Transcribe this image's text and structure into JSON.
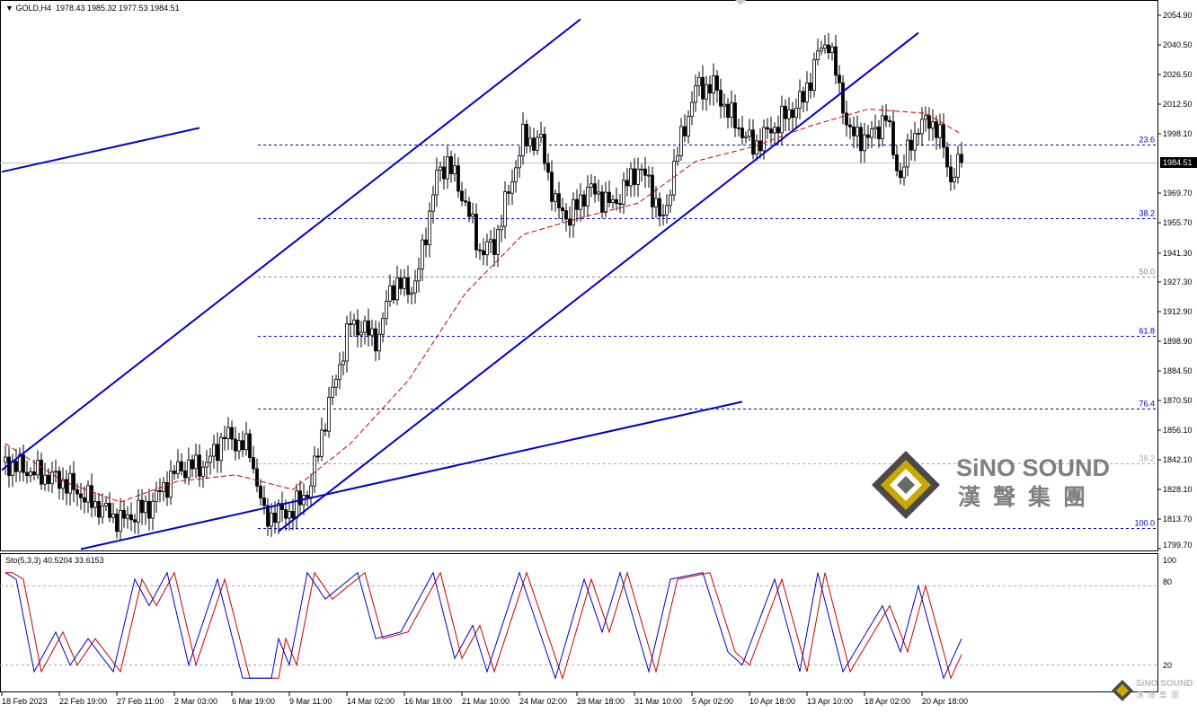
{
  "header": {
    "symbol": "GOLD,H4",
    "ohlc": "1978.43 1985.32 1977.53 1984.51"
  },
  "indicator": {
    "label": "Sto(5,3,3) 40.5204 33.6153"
  },
  "logo": {
    "name": "SiNO SOUND",
    "chinese": "漢聲集團"
  },
  "colors": {
    "trendline": "#0000cc",
    "fib": "#0000cc",
    "ma": "#cc0000",
    "stoch_main": "#0000cc",
    "stoch_signal": "#cc0000",
    "grid": "#aaaaaa"
  },
  "chart_data": [
    {
      "type": "candlestick",
      "title": "GOLD,H4",
      "ylim": [
        1799.7,
        2054.9
      ],
      "y_ticks": [
        "2054.90",
        "2040.50",
        "2026.50",
        "2012.50",
        "1998.10",
        "1969.70",
        "1955.70",
        "1941.30",
        "1927.30",
        "1912.90",
        "1898.90",
        "1884.50",
        "1870.50",
        "1856.10",
        "1842.10",
        "1828.10",
        "1813.70",
        "1799.70"
      ],
      "current_price": "1984.51",
      "x_ticks": [
        "18 Feb 2023",
        "22 Feb 19:00",
        "27 Feb 11:00",
        "2 Mar 03:00",
        "6 Mar 19:00",
        "9 Mar 11:00",
        "14 Mar 02:00",
        "16 Mar 18:00",
        "21 Mar 10:00",
        "24 Mar 02:00",
        "28 Mar 18:00",
        "31 Mar 10:00",
        "5 Apr 02:00",
        "10 Apr 18:00",
        "13 Apr 10:00",
        "18 Apr 02:00",
        "20 Apr 18:00"
      ],
      "bars_per_x_tick": 16,
      "close_path": [
        [
          1,
          1841
        ],
        [
          9,
          1836
        ],
        [
          17,
          1832
        ],
        [
          25,
          1822
        ],
        [
          33,
          1813
        ],
        [
          41,
          1820
        ],
        [
          49,
          1838
        ],
        [
          57,
          1840
        ],
        [
          62,
          1854
        ],
        [
          69,
          1847
        ],
        [
          73,
          1815
        ],
        [
          81,
          1818
        ],
        [
          86,
          1830
        ],
        [
          89,
          1855
        ],
        [
          97,
          1908
        ],
        [
          105,
          1900
        ],
        [
          108,
          1925
        ],
        [
          115,
          1925
        ],
        [
          121,
          1978
        ],
        [
          124,
          1985
        ],
        [
          129,
          1965
        ],
        [
          133,
          1942
        ],
        [
          137,
          1945
        ],
        [
          145,
          1996
        ],
        [
          150,
          1994
        ],
        [
          154,
          1964
        ],
        [
          158,
          1958
        ],
        [
          163,
          1972
        ],
        [
          170,
          1964
        ],
        [
          177,
          1982
        ],
        [
          180,
          1975
        ],
        [
          184,
          1955
        ],
        [
          187,
          1983
        ],
        [
          193,
          2020
        ],
        [
          198,
          2021
        ],
        [
          203,
          2006
        ],
        [
          209,
          1992
        ],
        [
          217,
          2005
        ],
        [
          223,
          2015
        ],
        [
          227,
          2036
        ],
        [
          230,
          2043
        ],
        [
          233,
          2019
        ],
        [
          236,
          1998
        ],
        [
          241,
          1996
        ],
        [
          246,
          2006
        ],
        [
          250,
          1976
        ],
        [
          253,
          1996
        ],
        [
          258,
          2006
        ],
        [
          262,
          1993
        ],
        [
          264,
          1976
        ],
        [
          267,
          1984.51
        ]
      ],
      "moving_average": {
        "style": "dashed",
        "path": [
          [
            1,
            1850
          ],
          [
            17,
            1832
          ],
          [
            33,
            1822
          ],
          [
            49,
            1832
          ],
          [
            65,
            1835
          ],
          [
            81,
            1828
          ],
          [
            97,
            1850
          ],
          [
            113,
            1880
          ],
          [
            129,
            1922
          ],
          [
            145,
            1950
          ],
          [
            161,
            1958
          ],
          [
            177,
            1965
          ],
          [
            193,
            1985
          ],
          [
            209,
            1992
          ],
          [
            225,
            2002
          ],
          [
            241,
            2010
          ],
          [
            257,
            2008
          ],
          [
            267,
            1998
          ]
        ]
      },
      "fibonacci_levels": [
        {
          "label": "23.6",
          "price": 1992.9,
          "color": "#0000cc"
        },
        {
          "label": "38.2",
          "price": 1958.0,
          "color": "#0000cc"
        },
        {
          "label": "50.0",
          "price": 1929.7,
          "color": "#888888"
        },
        {
          "label": "61.8",
          "price": 1901.4,
          "color": "#0000cc"
        },
        {
          "label": "76.4",
          "price": 1866.6,
          "color": "#0000cc"
        },
        {
          "label": "38.2",
          "price": 1840.5,
          "color": "#aaaaaa"
        },
        {
          "label": "100.0",
          "price": 1809.5,
          "color": "#0000cc"
        }
      ],
      "trendlines": [
        {
          "from": [
            0,
            1837.3
          ],
          "to": [
            161,
            2053.0
          ]
        },
        {
          "from": [
            0,
            1980.0
          ],
          "to": [
            55,
            2001.0
          ]
        },
        {
          "from": [
            77,
            1808.0
          ],
          "to": [
            255,
            2046.5
          ]
        },
        {
          "from": [
            22,
            1799.5
          ],
          "to": [
            206,
            1870.0
          ]
        }
      ]
    },
    {
      "type": "line",
      "title": "Sto(5,3,3)",
      "ylim": [
        0,
        100
      ],
      "y_ticks": [
        "100",
        "80",
        "20"
      ],
      "series": [
        {
          "name": "main",
          "values_path": [
            [
              1,
              90
            ],
            [
              4,
              85
            ],
            [
              9,
              15
            ],
            [
              15,
              45
            ],
            [
              19,
              20
            ],
            [
              24,
              40
            ],
            [
              31,
              15
            ],
            [
              37,
              85
            ],
            [
              41,
              65
            ],
            [
              46,
              90
            ],
            [
              52,
              20
            ],
            [
              60,
              85
            ],
            [
              67,
              10
            ],
            [
              75,
              10
            ],
            [
              77,
              40
            ],
            [
              80,
              20
            ],
            [
              85,
              90
            ],
            [
              90,
              70
            ],
            [
              99,
              90
            ],
            [
              104,
              40
            ],
            [
              111,
              45
            ],
            [
              120,
              90
            ],
            [
              126,
              25
            ],
            [
              131,
              50
            ],
            [
              135,
              15
            ],
            [
              144,
              90
            ],
            [
              154,
              10
            ],
            [
              162,
              85
            ],
            [
              167,
              45
            ],
            [
              172,
              90
            ],
            [
              180,
              15
            ],
            [
              186,
              85
            ],
            [
              195,
              90
            ],
            [
              202,
              30
            ],
            [
              206,
              20
            ],
            [
              215,
              85
            ],
            [
              222,
              15
            ],
            [
              227,
              90
            ],
            [
              234,
              15
            ],
            [
              245,
              65
            ],
            [
              250,
              30
            ],
            [
              255,
              80
            ],
            [
              262,
              10
            ],
            [
              267,
              40
            ]
          ]
        },
        {
          "name": "signal",
          "lag_bars": 2
        }
      ]
    }
  ]
}
